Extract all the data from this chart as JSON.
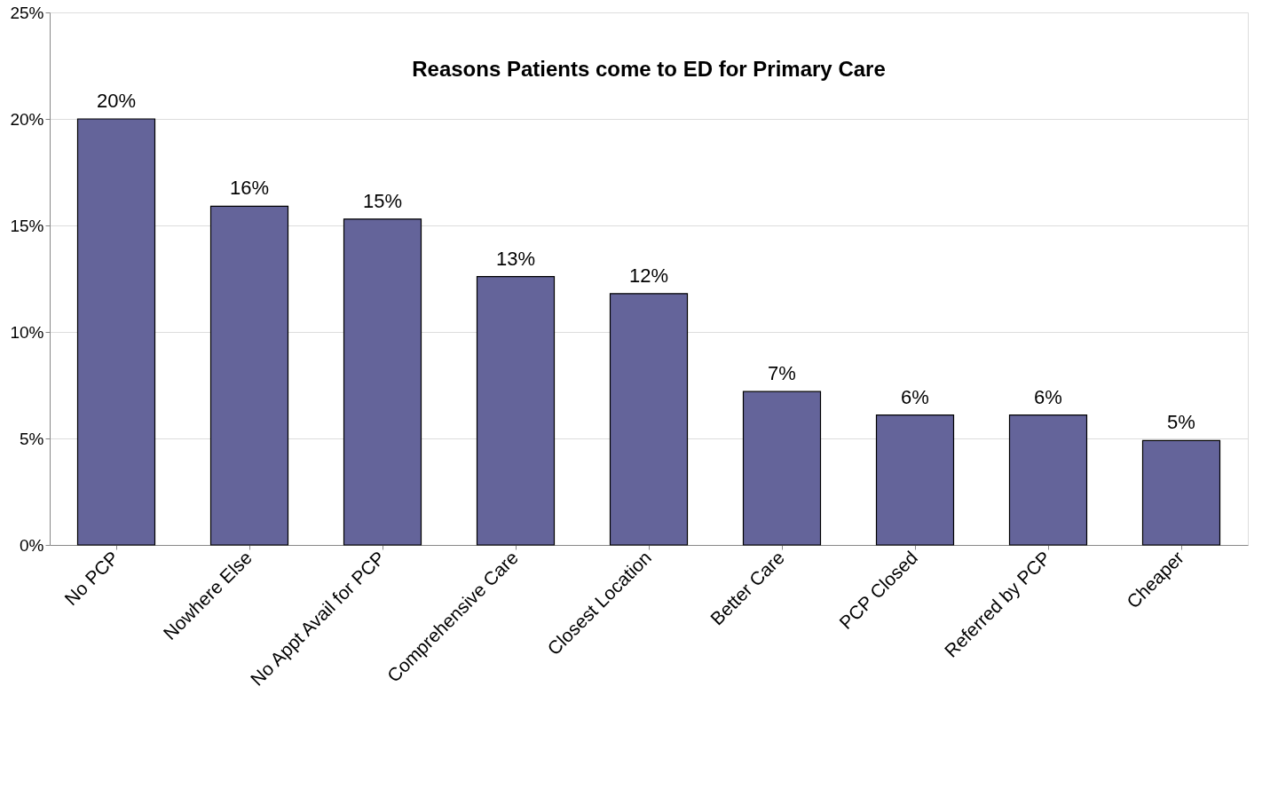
{
  "chart_data": {
    "type": "bar",
    "title": "Reasons Patients come to ED for Primary Care",
    "categories": [
      "No PCP",
      "Nowhere Else",
      "No Appt Avail for PCP",
      "Comprehensive Care",
      "Closest Location",
      "Better Care",
      "PCP Closed",
      "Referred by PCP",
      "Cheaper"
    ],
    "values": [
      20.0,
      15.9,
      15.3,
      12.6,
      11.8,
      7.2,
      6.1,
      6.1,
      4.9
    ],
    "value_labels": [
      "20%",
      "16%",
      "15%",
      "13%",
      "12%",
      "7%",
      "6%",
      "6%",
      "5%"
    ],
    "color": "#64649a",
    "ylim": [
      0,
      25
    ],
    "yticks": [
      {
        "value": 0,
        "label": "0%"
      },
      {
        "value": 5,
        "label": "5%"
      },
      {
        "value": 10,
        "label": "10%"
      },
      {
        "value": 15,
        "label": "15%"
      },
      {
        "value": 20,
        "label": "20%"
      },
      {
        "value": 25,
        "label": "25%"
      }
    ],
    "grid": "y"
  }
}
